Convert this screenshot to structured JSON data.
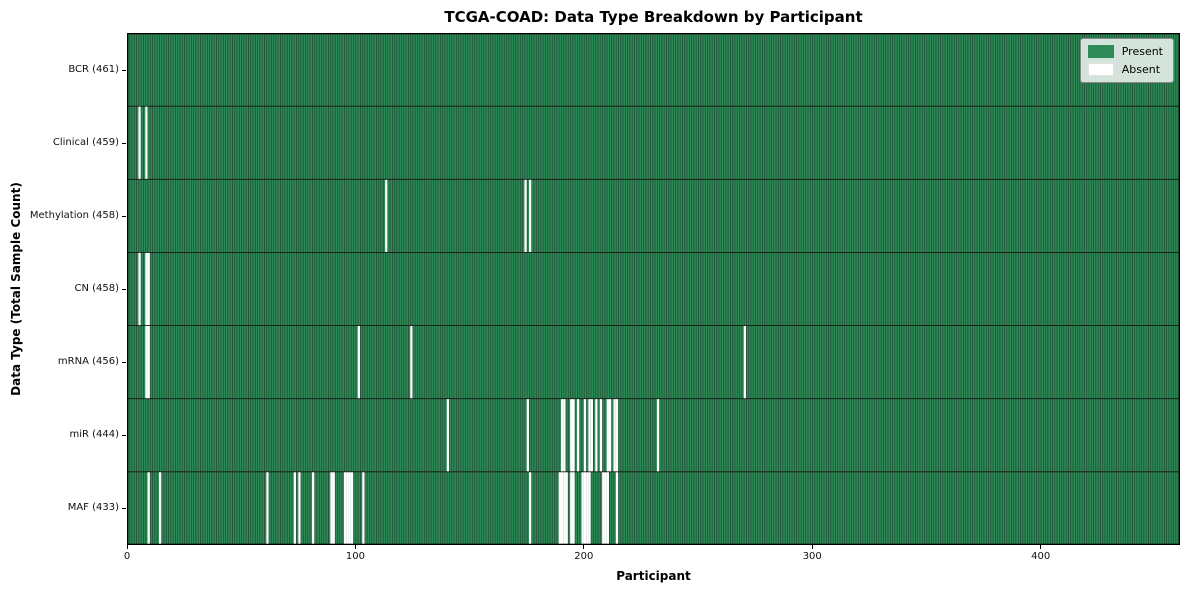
{
  "chart_data": {
    "type": "heatmap",
    "title": "TCGA-COAD: Data Type Breakdown by Participant",
    "xlabel": "Participant",
    "ylabel": "Data Type (Total Sample Count)",
    "legend_labels": [
      "Present",
      "Absent"
    ],
    "legend_position": "upper right",
    "x_ticks": [
      0,
      100,
      200,
      300,
      400
    ],
    "xlim": [
      0,
      461
    ],
    "n_participants": 461,
    "present_color": "#2e8b57",
    "absent_color": "#ffffff",
    "cell_edge_color": "#1c4630",
    "row_border_color": "#151515",
    "plot_border_color": "#000000",
    "rows": [
      {
        "label": "BCR (461)",
        "data_type": "BCR",
        "total": 461,
        "absent_participants": []
      },
      {
        "label": "Clinical (459)",
        "data_type": "Clinical",
        "total": 459,
        "absent_participants": [
          5,
          8
        ]
      },
      {
        "label": "Methylation (458)",
        "data_type": "Methylation",
        "total": 458,
        "absent_participants": [
          113,
          174,
          176
        ]
      },
      {
        "label": "CN (458)",
        "data_type": "CN",
        "total": 458,
        "absent_participants": [
          5,
          8,
          9
        ]
      },
      {
        "label": "mRNA (456)",
        "data_type": "mRNA",
        "total": 456,
        "absent_participants": [
          8,
          9,
          101,
          124,
          270
        ]
      },
      {
        "label": "miR (444)",
        "data_type": "miR",
        "total": 444,
        "absent_participants": [
          140,
          175,
          190,
          191,
          194,
          195,
          197,
          200,
          202,
          203,
          205,
          207,
          210,
          211,
          213,
          214,
          232
        ]
      },
      {
        "label": "MAF (433)",
        "data_type": "MAF",
        "total": 433,
        "absent_participants": [
          9,
          14,
          61,
          73,
          75,
          81,
          89,
          90,
          95,
          96,
          97,
          98,
          103,
          176,
          189,
          190,
          191,
          192,
          194,
          195,
          199,
          200,
          201,
          202,
          208,
          209,
          210,
          214
        ]
      }
    ]
  }
}
